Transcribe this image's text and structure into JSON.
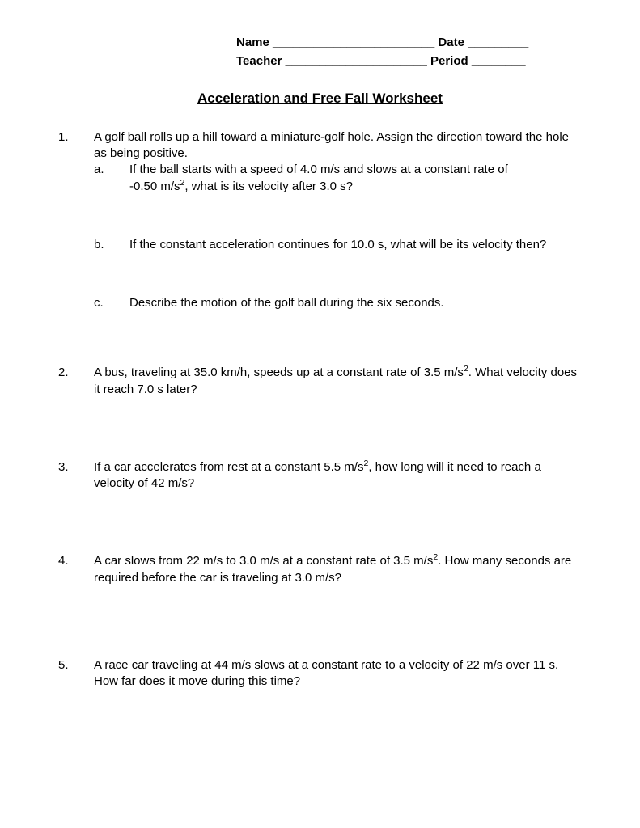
{
  "header": {
    "name_label": "Name",
    "name_line": "________________________",
    "date_label": "Date",
    "date_line": "_________",
    "teacher_label": "Teacher",
    "teacher_line": "_____________________",
    "period_label": "Period",
    "period_line": "________"
  },
  "title": "Acceleration and Free Fall Worksheet",
  "questions": {
    "q1": {
      "num": "1.",
      "intro": "A golf ball rolls up a hill toward a miniature-golf hole. Assign the direction toward the hole as being positive.",
      "a_label": "a.",
      "a_text_1": "If the ball starts with a speed of 4.0 m/s and slows at a constant rate of",
      "a_text_2": "-0.50 m/s",
      "a_text_3": ", what is its velocity after 3.0 s?",
      "b_label": "b.",
      "b_text": "If the constant acceleration continues for 10.0 s, what will be its velocity then?",
      "c_label": "c.",
      "c_text": "Describe the motion of the golf ball during the six seconds."
    },
    "q2": {
      "num": "2.",
      "text_1": "A bus, traveling at 35.0 km/h, speeds up at a constant rate of 3.5 m/s",
      "text_2": ". What velocity does it reach 7.0 s later?"
    },
    "q3": {
      "num": "3.",
      "text_1": "If a car accelerates from rest at a constant 5.5 m/s",
      "text_2": ", how long will it need to reach a velocity of 42 m/s?"
    },
    "q4": {
      "num": "4.",
      "text_1": "A car slows from 22 m/s to 3.0 m/s at a constant rate of 3.5 m/s",
      "text_2": ". How many seconds are required before the car is traveling at 3.0 m/s?"
    },
    "q5": {
      "num": "5.",
      "text": "A race car traveling at 44 m/s slows at a constant rate to a velocity of 22 m/s over 11 s. How far does it move during this time?"
    }
  }
}
